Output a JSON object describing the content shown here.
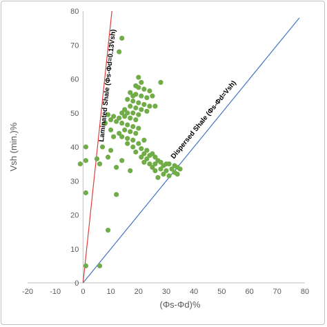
{
  "chart_data": {
    "type": "scatter",
    "title": "",
    "xlabel": "(Φs-Φd)%",
    "ylabel": "Vsh (min.)%",
    "xlim": [
      -20,
      80
    ],
    "ylim": [
      0,
      80
    ],
    "xticks": [
      -20,
      -10,
      0,
      10,
      20,
      30,
      40,
      50,
      60,
      70,
      80
    ],
    "yticks": [
      0,
      10,
      20,
      30,
      40,
      50,
      60,
      70,
      80
    ],
    "xtick_labels": [
      "-20",
      "-10",
      "0",
      "10",
      "20",
      "30",
      "40",
      "50",
      "60",
      "70",
      "80"
    ],
    "ytick_labels": [
      "0",
      "10",
      "20",
      "30",
      "40",
      "50",
      "60",
      "70",
      "80"
    ],
    "grid": false,
    "legend": "none",
    "point_color": "#70ad47",
    "points": [
      [
        14,
        72
      ],
      [
        13,
        68
      ],
      [
        20,
        60.5
      ],
      [
        21,
        59
      ],
      [
        28,
        59
      ],
      [
        19,
        58
      ],
      [
        20,
        57.5
      ],
      [
        22,
        57
      ],
      [
        24,
        56.5
      ],
      [
        17,
        56
      ],
      [
        18,
        55
      ],
      [
        19,
        55.5
      ],
      [
        21,
        55
      ],
      [
        23,
        54.5
      ],
      [
        25,
        55
      ],
      [
        16,
        54
      ],
      [
        18,
        53.5
      ],
      [
        20,
        53
      ],
      [
        22,
        52.5
      ],
      [
        24,
        52
      ],
      [
        26,
        52
      ],
      [
        17,
        52
      ],
      [
        19,
        51.5
      ],
      [
        21,
        51
      ],
      [
        23,
        50.5
      ],
      [
        15,
        51
      ],
      [
        16,
        50
      ],
      [
        18,
        50
      ],
      [
        20,
        49.5
      ],
      [
        14,
        50
      ],
      [
        15,
        49
      ],
      [
        17,
        48.5
      ],
      [
        19,
        48
      ],
      [
        13,
        48.5
      ],
      [
        11,
        49
      ],
      [
        9,
        49.5
      ],
      [
        10,
        48
      ],
      [
        12,
        47.5
      ],
      [
        14,
        47
      ],
      [
        16,
        46.5
      ],
      [
        18,
        46
      ],
      [
        20,
        45.5
      ],
      [
        8,
        47
      ],
      [
        15,
        45
      ],
      [
        17,
        44.5
      ],
      [
        19,
        44
      ],
      [
        13,
        44
      ],
      [
        14,
        43
      ],
      [
        16,
        42.5
      ],
      [
        18,
        42
      ],
      [
        11,
        43
      ],
      [
        10,
        45
      ],
      [
        20,
        41
      ],
      [
        22,
        42
      ],
      [
        16,
        41
      ],
      [
        18,
        40
      ],
      [
        21,
        39.5
      ],
      [
        19,
        38.5
      ],
      [
        22,
        38
      ],
      [
        23,
        39
      ],
      [
        24,
        37.5
      ],
      [
        25,
        38
      ],
      [
        21,
        37
      ],
      [
        23,
        36.5
      ],
      [
        26,
        37
      ],
      [
        27,
        36
      ],
      [
        22,
        35.5
      ],
      [
        24,
        35
      ],
      [
        26,
        35
      ],
      [
        28,
        35.5
      ],
      [
        30,
        35
      ],
      [
        25,
        34
      ],
      [
        29,
        34.5
      ],
      [
        31,
        35
      ],
      [
        33,
        34.5
      ],
      [
        34,
        34
      ],
      [
        35,
        33.5
      ],
      [
        32,
        33.5
      ],
      [
        30,
        33
      ],
      [
        33,
        32.5
      ],
      [
        34,
        32
      ],
      [
        31,
        31.5
      ],
      [
        27,
        31
      ],
      [
        29,
        32
      ],
      [
        26,
        33
      ],
      [
        28,
        33.5
      ],
      [
        17,
        33
      ],
      [
        12,
        34
      ],
      [
        14,
        36
      ],
      [
        9,
        37
      ],
      [
        10,
        39
      ],
      [
        7,
        40
      ],
      [
        6,
        35
      ],
      [
        5,
        36.5
      ],
      [
        1,
        36
      ],
      [
        1,
        40
      ],
      [
        -1,
        35
      ],
      [
        1,
        26.5
      ],
      [
        12,
        26
      ],
      [
        9,
        15.5
      ],
      [
        6,
        5
      ],
      [
        1,
        5
      ]
    ],
    "lines": [
      {
        "name": "Laminated Shale",
        "label": "Laminated Shale (Φs-Φd=0.13Vsh)",
        "slope": 0.13,
        "color": "#e03c3c"
      },
      {
        "name": "Dispersed Shale",
        "label": "Dispersed Shale (Φs-Φd=Vsh)",
        "slope": 1.0,
        "color": "#4472c4"
      }
    ]
  }
}
